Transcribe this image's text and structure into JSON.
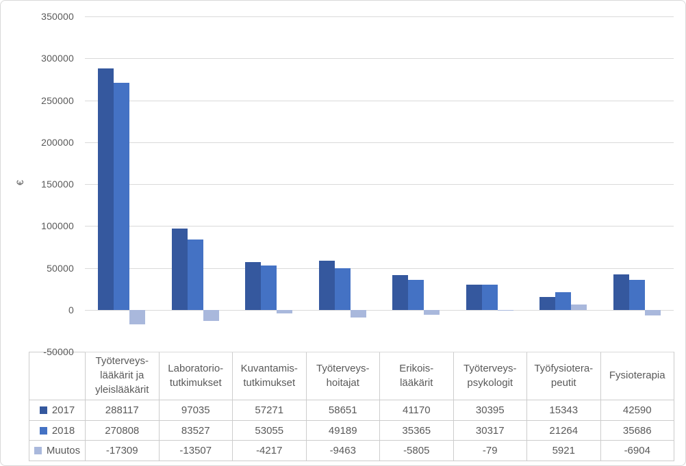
{
  "axis": {
    "ylabel": "€",
    "tick_labels": [
      "350000",
      "300000",
      "250000",
      "200000",
      "150000",
      "100000",
      "50000",
      "0",
      "-50000"
    ],
    "text_color": "#595959",
    "gridline_color": "#d9d9d9"
  },
  "chart_data": {
    "type": "bar",
    "title": "",
    "xlabel": "",
    "ylabel": "€",
    "ylim": [
      -50000,
      350000
    ],
    "ytick_step": 50000,
    "grid": true,
    "legend_position": "data-table-row-headers",
    "categories": [
      "Työterveys-\nlääkärit ja\nyleislääkärit",
      "Laboratorio-\ntutkimukset",
      "Kuvantamis-\ntutkimukset",
      "Työterveys-\nhoitajat",
      "Erikois-\nlääkärit",
      "Työterveys-\npsykologit",
      "Työfysiotera-\npeutit",
      "Fysioterapia"
    ],
    "series": [
      {
        "name": "2017",
        "color": "#35589E",
        "values": [
          288117,
          97035,
          57271,
          58651,
          41170,
          30395,
          15343,
          42590
        ]
      },
      {
        "name": "2018",
        "color": "#4472C4",
        "values": [
          270808,
          83527,
          53055,
          49189,
          35365,
          30317,
          21264,
          35686
        ]
      },
      {
        "name": "Muutos",
        "color": "#A9B8DC",
        "values": [
          -17309,
          -13507,
          -4217,
          -9463,
          -5805,
          -79,
          5921,
          -6904
        ]
      }
    ]
  },
  "table": {
    "border_color": "#cccccc",
    "text_color": "#595959"
  }
}
